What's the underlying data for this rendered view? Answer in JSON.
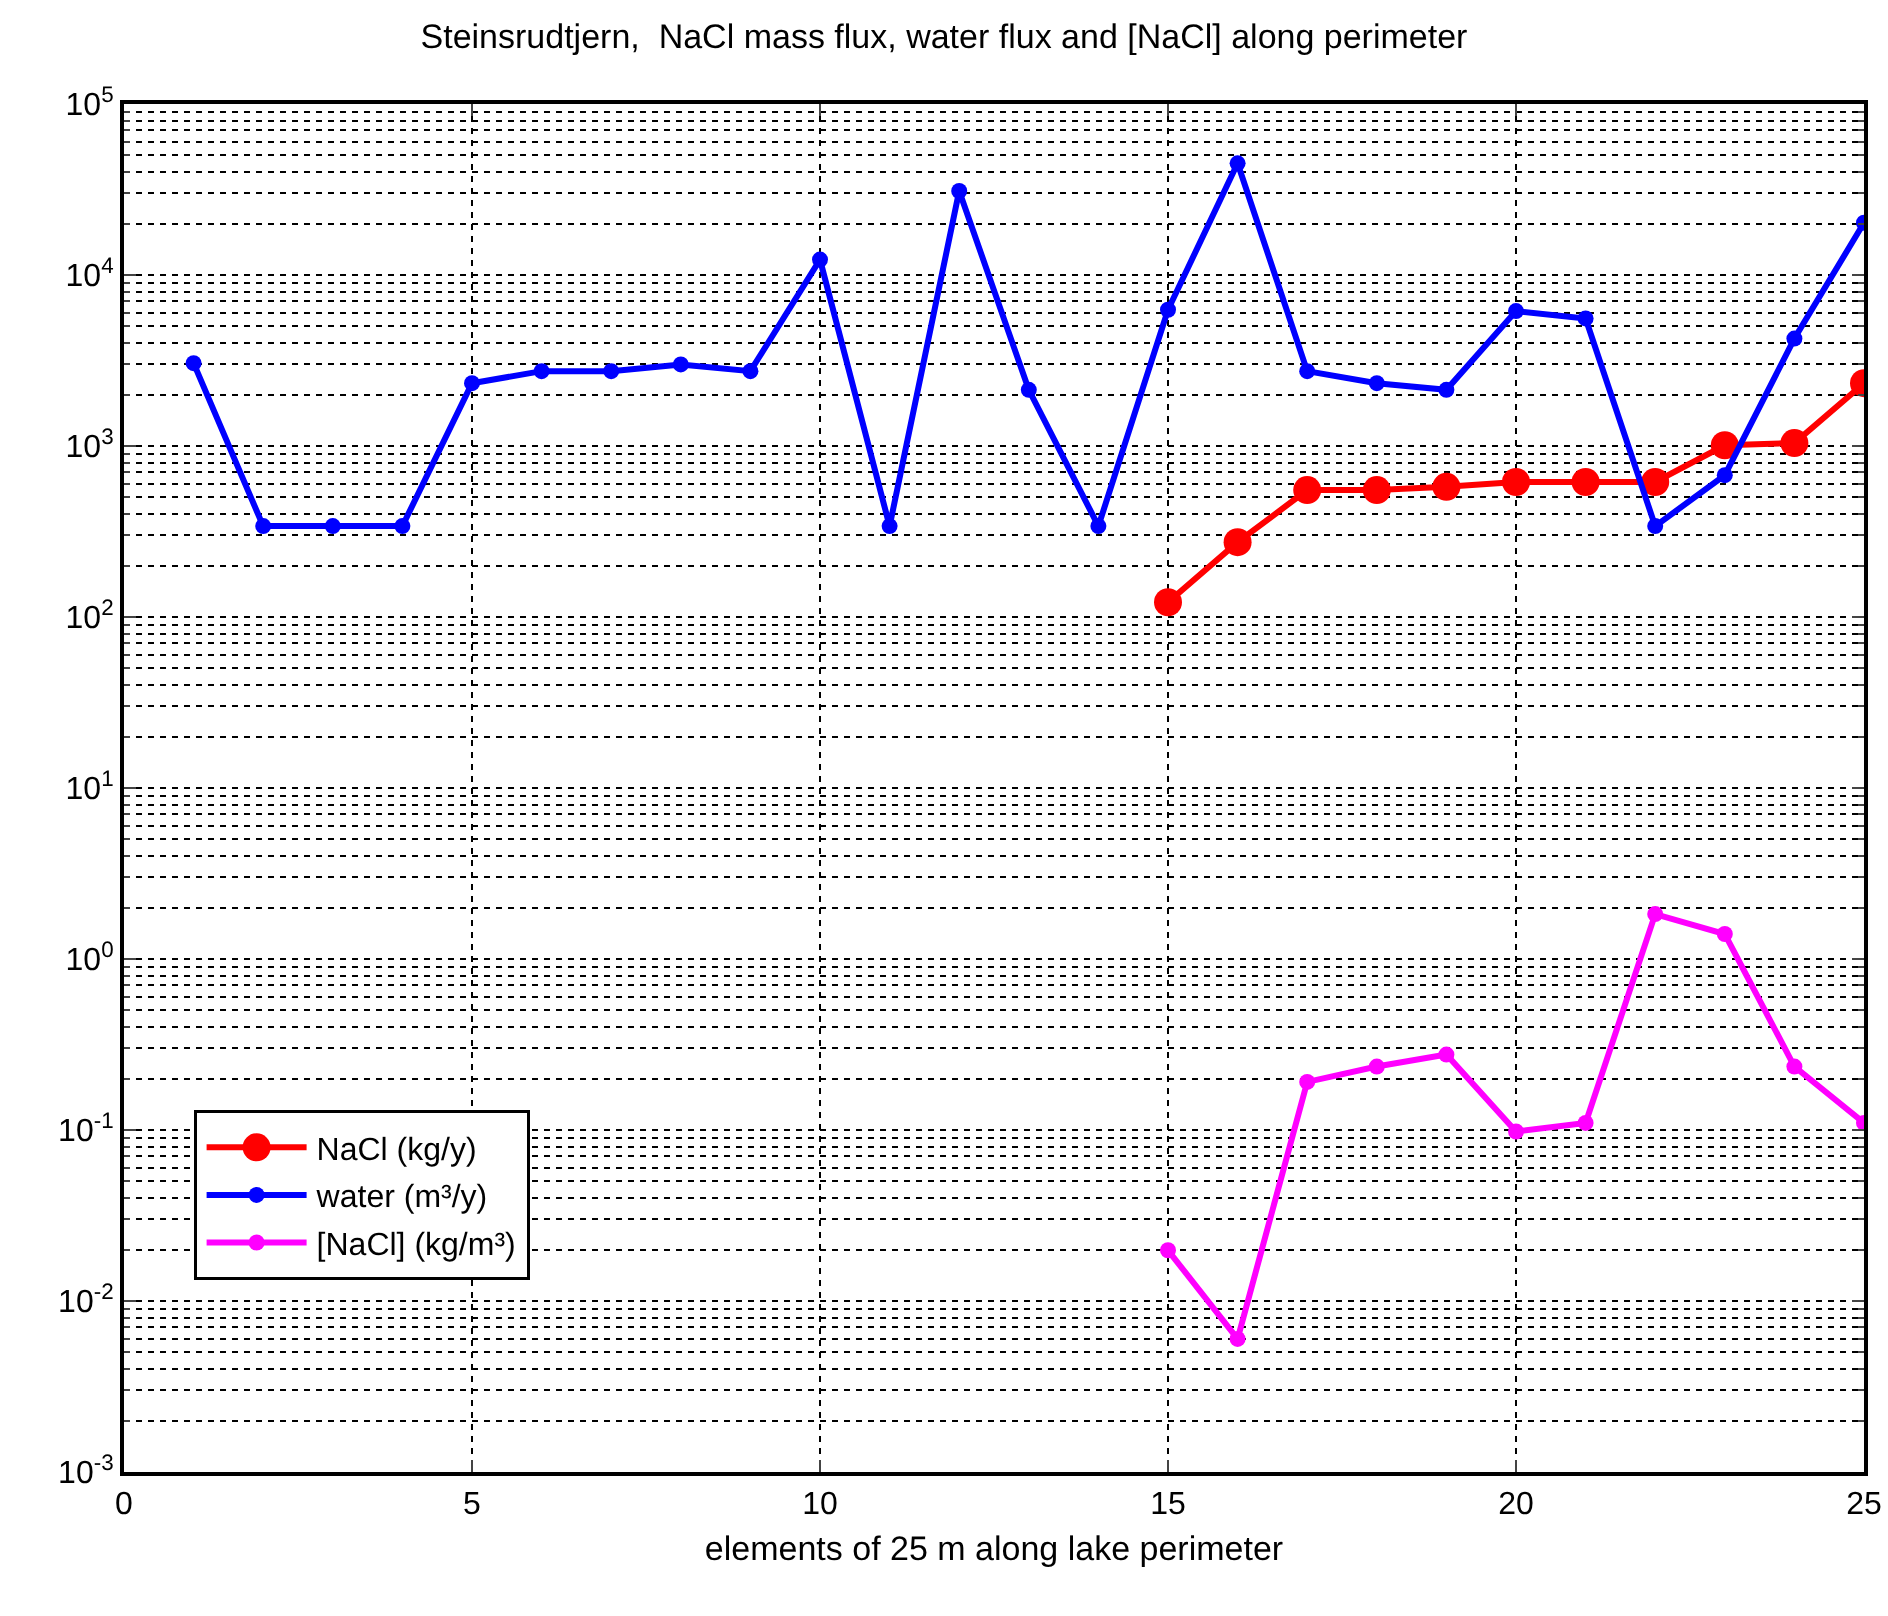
{
  "chart_data": {
    "type": "line",
    "title": "Steinsrudtjern,  NaCl mass flux, water flux and [NaCl] along perimeter",
    "xlabel": "elements of 25 m along lake perimeter",
    "x": [
      1,
      2,
      3,
      4,
      5,
      6,
      7,
      8,
      9,
      10,
      11,
      12,
      13,
      14,
      15,
      16,
      17,
      18,
      19,
      20,
      21,
      22,
      23,
      24,
      25
    ],
    "series": [
      {
        "name": "NaCl (kg/y)",
        "color": "#ff0000",
        "x": [
          15,
          16,
          17,
          18,
          19,
          20,
          21,
          22,
          23,
          24,
          25
        ],
        "values": [
          122,
          274,
          552,
          552,
          577,
          616,
          616,
          616,
          1010,
          1040,
          2330
        ]
      },
      {
        "name": "water (m³/y)",
        "color": "#0000ff",
        "values": [
          3050,
          340,
          340,
          340,
          2330,
          2740,
          2740,
          3000,
          2740,
          12300,
          340,
          31000,
          2130,
          340,
          6260,
          45000,
          2740,
          2330,
          2130,
          6150,
          5570,
          340,
          675,
          4250,
          20200
        ]
      },
      {
        "name": "[NaCl] (kg/m³)",
        "color": "#ff00ff",
        "x": [
          15,
          16,
          17,
          18,
          19,
          20,
          21,
          22,
          23,
          24,
          25
        ],
        "values": [
          0.0198,
          0.006,
          0.191,
          0.235,
          0.276,
          0.098,
          0.11,
          1.83,
          1.4,
          0.235,
          0.11
        ]
      }
    ],
    "xlim": [
      0,
      25
    ],
    "xticks": [
      0,
      5,
      10,
      15,
      20,
      25
    ],
    "ylim": [
      0.001,
      100000
    ],
    "yticks": [
      {
        "value": 0.001,
        "label": "10$^{-3}$"
      },
      {
        "value": 0.01,
        "label": "10$^{-2}$"
      },
      {
        "value": 0.1,
        "label": "10$^{-1}$"
      },
      {
        "value": 1,
        "label": "10$^{0}$"
      },
      {
        "value": 10,
        "label": "10$^{1}$"
      },
      {
        "value": 100,
        "label": "10$^{2}$"
      },
      {
        "value": 1000,
        "label": "10$^{3}$"
      },
      {
        "value": 10000,
        "label": "10$^{4}$"
      },
      {
        "value": 100000,
        "label": "10$^{5}$"
      }
    ],
    "log": "y",
    "grid": true,
    "legend": "bottom left",
    "marker": "circle",
    "line_style": "solid"
  }
}
